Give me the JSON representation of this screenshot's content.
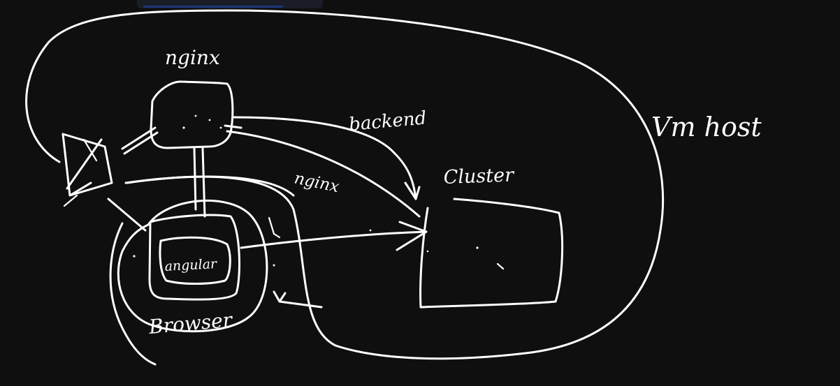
{
  "labels": {
    "nginx_top": "nginx",
    "backend": "backend",
    "vm_host": "Vm host",
    "nginx_mid": "nginx",
    "cluster": "Cluster",
    "angular": "angular",
    "browser": "Browser"
  },
  "colors": {
    "background": "#0f0f0f",
    "ink": "#ffffff",
    "topbar": "#1a1d26"
  }
}
